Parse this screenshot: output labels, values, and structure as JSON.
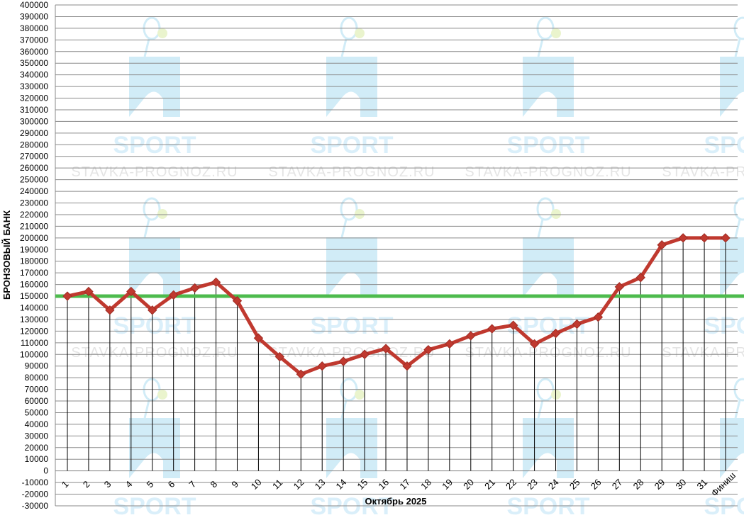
{
  "watermark": {
    "brand": "SPORT",
    "url": "STAVKA-PROGNOZ.RU"
  },
  "chart_data": {
    "type": "line",
    "title": "",
    "xlabel": "Октябрь 2025",
    "ylabel": "БРОНЗОВЫЙ БАНК",
    "ylim": [
      -30000,
      400000
    ],
    "ytick_step": 10000,
    "grid": true,
    "x": [
      "1",
      "2",
      "3",
      "4",
      "5",
      "6",
      "7",
      "8",
      "9",
      "10",
      "11",
      "12",
      "13",
      "14",
      "15",
      "16",
      "17",
      "18",
      "19",
      "20",
      "21",
      "22",
      "23",
      "24",
      "25",
      "26",
      "27",
      "28",
      "29",
      "30",
      "31",
      "Финиш"
    ],
    "series": [
      {
        "values": [
          150000,
          154000,
          138000,
          154000,
          138000,
          151000,
          157000,
          162000,
          146000,
          114000,
          98000,
          83000,
          90000,
          94000,
          100000,
          105000,
          90000,
          104000,
          109000,
          116000,
          122000,
          125000,
          109000,
          118000,
          126000,
          132000,
          158000,
          166000,
          194000,
          200000,
          200000,
          200000
        ],
        "color": "#c0392f",
        "marker_color": "#c0392f"
      }
    ],
    "reference_line": {
      "value": 150000,
      "color": "#4dbb4d"
    }
  }
}
